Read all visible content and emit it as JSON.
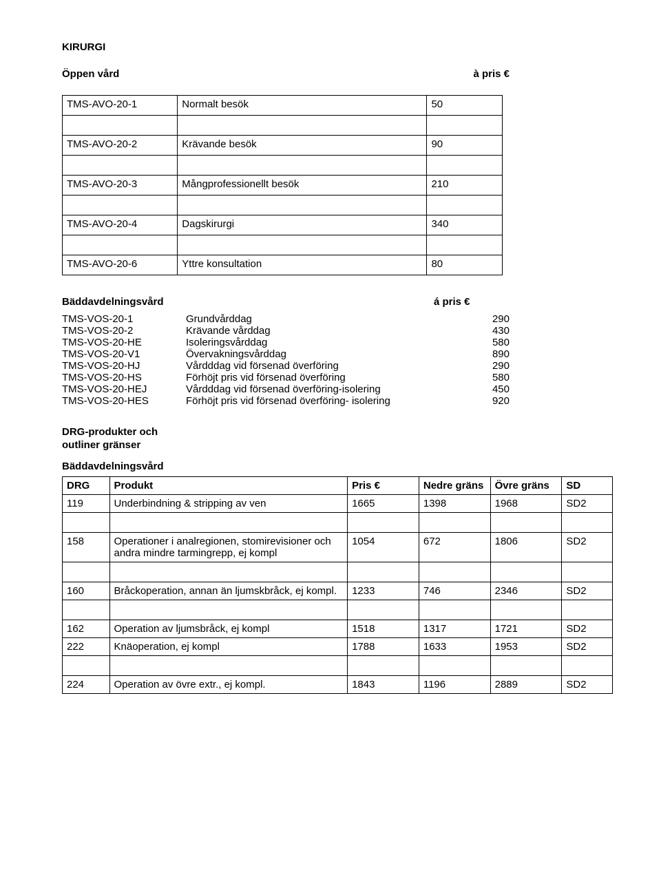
{
  "header": {
    "title": "KIRURGI",
    "open_care": "Öppen vård",
    "a_pris": "à pris €"
  },
  "t1": {
    "rows": [
      {
        "code": "TMS-AVO-20-1",
        "desc": "Normalt besök",
        "val": "50"
      },
      {
        "code": "TMS-AVO-20-2",
        "desc": "Krävande besök",
        "val": "90"
      },
      {
        "code": "TMS-AVO-20-3",
        "desc": "Mångprofessionellt besök",
        "val": "210"
      },
      {
        "code": "TMS-AVO-20-4",
        "desc": "Dagskirurgi",
        "val": "340"
      },
      {
        "code": "TMS-AVO-20-6",
        "desc": "Yttre konsultation",
        "val": "80"
      }
    ]
  },
  "bed_head": {
    "left": "Bäddavdelningsvård",
    "right": "á pris €"
  },
  "kvlist": {
    "items": [
      {
        "k": "TMS-VOS-20-1",
        "d": "Grundvårddag",
        "v": "290"
      },
      {
        "k": "TMS-VOS-20-2",
        "d": "Krävande vårddag",
        "v": "430"
      },
      {
        "k": "TMS-VOS-20-HE",
        "d": "Isoleringsvårddag",
        "v": "580"
      },
      {
        "k": "TMS-VOS-20-V1",
        "d": "Övervakningsvårddag",
        "v": "890"
      },
      {
        "k": "TMS-VOS-20-HJ",
        "d": "Vårdddag vid försenad överföring",
        "v": "290"
      },
      {
        "k": "TMS-VOS-20-HS",
        "d": "Förhöjt pris vid försenad överföring",
        "v": "580"
      },
      {
        "k": "TMS-VOS-20-HEJ",
        "d": "Vårdddag vid försenad överföring-isolering",
        "v": "450"
      },
      {
        "k": "TMS-VOS-20-HES",
        "d": "Förhöjt pris vid försenad överföring- isolering",
        "v": "920"
      }
    ]
  },
  "drg_head": {
    "l1": "DRG-produkter och",
    "l2": "outliner gränser",
    "l3": "Bäddavdelningsvård"
  },
  "t2": {
    "columns": [
      "DRG",
      "Produkt",
      "Pris €",
      "Nedre gräns",
      "Övre gräns",
      "SD"
    ],
    "rows": [
      {
        "c": [
          "119",
          "Underbindning & stripping av ven",
          "1665",
          "1398",
          "1968",
          "SD2"
        ],
        "gap_after": true
      },
      {
        "c": [
          "158",
          "Operationer i analregionen, stomirevisioner och andra mindre tarmingrepp, ej kompl",
          "1054",
          "672",
          "1806",
          "SD2"
        ],
        "gap_after": true
      },
      {
        "c": [
          "160",
          "Bråckoperation, annan än ljumskbråck, ej kompl.",
          "1233",
          "746",
          "2346",
          "SD2"
        ],
        "gap_after": true
      },
      {
        "c": [
          "162",
          "Operation av ljumsbråck, ej kompl",
          "1518",
          "1317",
          "1721",
          "SD2"
        ],
        "gap_after": false
      },
      {
        "c": [
          "222",
          "Knäoperation, ej kompl",
          "1788",
          "1633",
          "1953",
          "SD2"
        ],
        "gap_after": true
      },
      {
        "c": [
          "224",
          "Operation av övre extr., ej kompl.",
          "1843",
          "1196",
          "2889",
          "SD2"
        ],
        "gap_after": false
      }
    ]
  }
}
